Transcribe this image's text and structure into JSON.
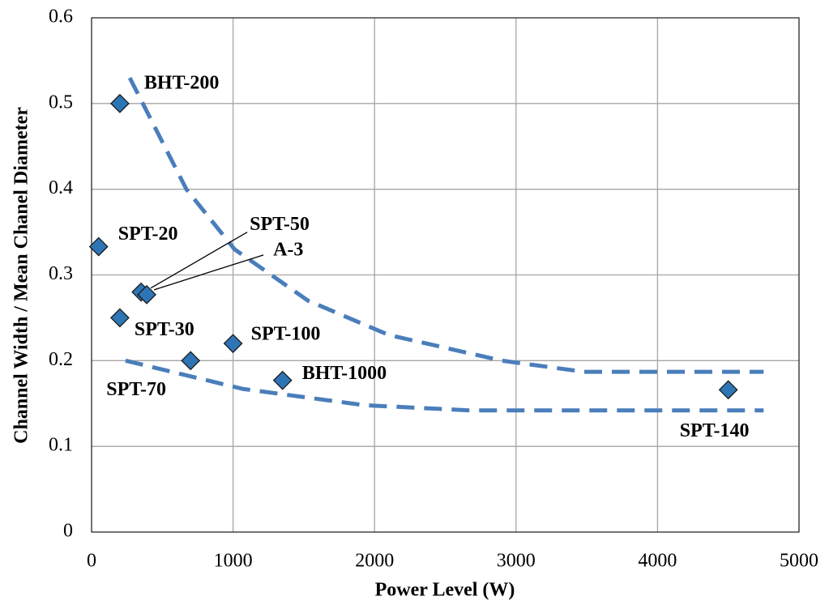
{
  "chart_data": {
    "type": "scatter",
    "x_label": "Power Level (W)",
    "y_label": "Channel Width / Mean Chanel Diameter",
    "xlim": [
      0,
      5000
    ],
    "xticks": [
      0,
      1000,
      2000,
      3000,
      4000,
      5000
    ],
    "ylim": [
      0,
      0.6
    ],
    "yticks": [
      0,
      0.1,
      0.2,
      0.3,
      0.4,
      0.5,
      0.6
    ],
    "grid": true,
    "color": "#2e75b6",
    "labels": [
      "BHT-200",
      "SPT-20",
      "SPT-50",
      "A-3",
      "SPT-30",
      "SPT-70",
      "SPT-100",
      "BHT-1000",
      "SPT-140"
    ],
    "x": [
      200,
      50,
      350,
      390,
      200,
      700,
      1000,
      1350,
      4500
    ],
    "y": [
      0.5,
      0.333,
      0.28,
      0.277,
      0.25,
      0.2,
      0.22,
      0.177,
      0.166
    ],
    "trend_lines": [
      {
        "color": "#4a7ebb",
        "x": [
          270,
          670,
          1010,
          1530,
          2100,
          2900,
          3480,
          4750
        ],
        "y": [
          0.53,
          0.4,
          0.33,
          0.27,
          0.23,
          0.2,
          0.187,
          0.187
        ]
      },
      {
        "color": "#4a7ebb",
        "x": [
          240,
          1070,
          1930,
          2670,
          4750
        ],
        "y": [
          0.2,
          0.167,
          0.148,
          0.142,
          0.142
        ]
      }
    ]
  }
}
